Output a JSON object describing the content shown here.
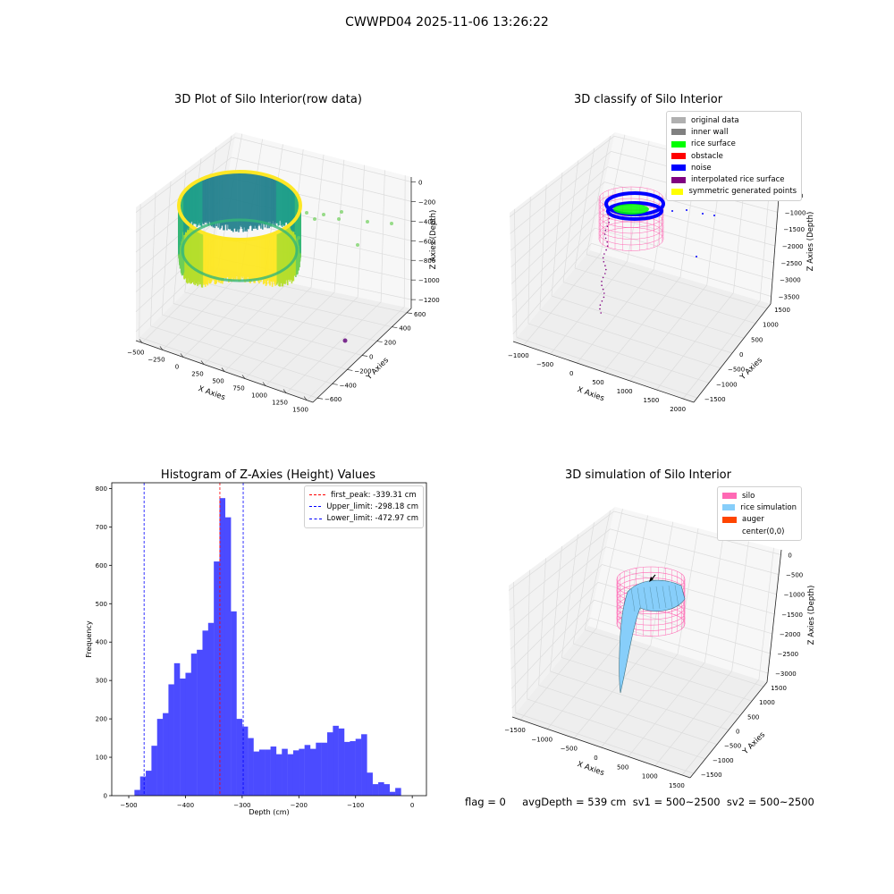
{
  "suptitle": "CWWPD04 2025-11-06 13:26:22",
  "footer": "flag = 0     avgDepth = 539 cm  sv1 = 500~2500  sv2 = 500~2500",
  "colors": {
    "hist_bar": "#4b4bff",
    "first_peak": "#ff0000",
    "limit": "#0000ff",
    "noise": "#0000ff",
    "rice_surface": "#00ff00",
    "silo": "#ff69b4",
    "rice_sim": "#87cefa",
    "auger": "#ff4500",
    "original": "#b0b0b0",
    "inner_wall": "#808080",
    "obstacle": "#ff0000",
    "interp": "#800080",
    "sym": "#ffff00"
  },
  "chart_data": [
    {
      "type": "scatter",
      "title": "3D Plot of Silo Interior(row data)",
      "xlabel": "X Axies",
      "ylabel": "Y Axies",
      "zlabel": "Z Axies (Depth)",
      "x_ticks": [
        "−500",
        "−250",
        "0",
        "250",
        "500",
        "750",
        "1000",
        "1250",
        "1500"
      ],
      "y_ticks": [
        "−600",
        "−400",
        "−200",
        "0",
        "200",
        "400",
        "600"
      ],
      "z_ticks": [
        "0",
        "−200",
        "−400",
        "−600",
        "−800",
        "−1000",
        "−1200"
      ]
    },
    {
      "type": "scatter",
      "title": "3D classify of Silo Interior",
      "xlabel": "X Axies",
      "ylabel": "Y Axies",
      "zlabel": "Z Axies (Depth)",
      "x_ticks": [
        "−1000",
        "−500",
        "0",
        "500",
        "1000",
        "1500",
        "2000"
      ],
      "y_ticks": [
        "−1500",
        "−1000",
        "−500",
        "0",
        "500",
        "1000",
        "1500"
      ],
      "z_ticks": [
        "0",
        "−500",
        "−1000",
        "−1500",
        "−2000",
        "−2500",
        "−3000",
        "−3500"
      ],
      "legend": [
        "original data",
        "inner wall",
        "rice surface",
        "obstacle",
        "noise",
        "interpolated rice surface",
        "symmetric generated points"
      ],
      "legend_position": "top-right"
    },
    {
      "type": "bar",
      "title": "Histogram of Z-Axies (Height) Values",
      "xlabel": "Depth (cm)",
      "ylabel": "Frequency",
      "xlim": [
        -530,
        25
      ],
      "ylim": [
        0,
        815
      ],
      "x_ticks": [
        -500,
        -400,
        -300,
        -200,
        -100,
        0
      ],
      "y_ticks": [
        0,
        100,
        200,
        300,
        400,
        500,
        600,
        700,
        800
      ],
      "bin_start": -490,
      "bin_width": 10,
      "values": [
        15,
        50,
        65,
        130,
        200,
        215,
        290,
        345,
        305,
        320,
        370,
        380,
        430,
        450,
        610,
        775,
        725,
        480,
        200,
        180,
        150,
        115,
        120,
        120,
        128,
        108,
        122,
        108,
        118,
        122,
        132,
        122,
        138,
        138,
        165,
        182,
        175,
        140,
        142,
        148,
        160,
        60,
        30,
        35,
        30,
        10,
        20
      ],
      "vlines": [
        {
          "label": "first_peak: -339.31 cm",
          "x": -339.31
        },
        {
          "label": "Upper_limit: -298.18 cm",
          "x": -298.18
        },
        {
          "label": "Lower_limit: -472.97 cm",
          "x": -472.97
        }
      ],
      "legend_position": "top-right"
    },
    {
      "type": "surface",
      "title": "3D simulation of Silo Interior",
      "xlabel": "X Axies",
      "ylabel": "Y Axies",
      "zlabel": "Z Axies (Depth)",
      "x_ticks": [
        "−1500",
        "−1000",
        "−500",
        "0",
        "500",
        "1000",
        "1500"
      ],
      "y_ticks": [
        "−1500",
        "−1000",
        "−500",
        "0",
        "500",
        "1000",
        "1500"
      ],
      "z_ticks": [
        "0",
        "−500",
        "−1000",
        "−1500",
        "−2000",
        "−2500",
        "−3000"
      ],
      "legend": [
        "silo",
        "rice simulation",
        "auger",
        "center(0,0)"
      ],
      "legend_position": "top-right"
    }
  ]
}
